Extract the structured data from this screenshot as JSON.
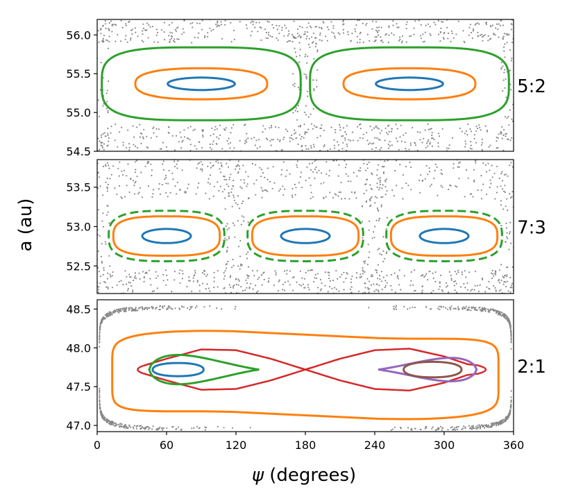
{
  "chart_data": {
    "type": "scatter",
    "xlabel_prefix": "ψ",
    "xlabel_suffix": " (degrees)",
    "ylabel": "a (au)",
    "xlim": [
      0,
      360
    ],
    "x_ticks": [
      "0",
      "60",
      "120",
      "180",
      "240",
      "300",
      "360"
    ],
    "panels": [
      {
        "label": "5:2",
        "ylim": [
          54.5,
          56.2
        ],
        "y_ticks": [
          "54.5",
          "55.0",
          "55.5",
          "56.0"
        ],
        "scatter": {
          "color": "#888888",
          "band_low": [
            54.5,
            54.85
          ],
          "band_high": [
            55.9,
            56.2
          ],
          "fill_near_x": [
            0,
            180,
            360
          ]
        },
        "islands": {
          "centers": [
            90,
            270
          ],
          "y0": 55.37,
          "curves": [
            {
              "color": "#1f77b4",
              "half_width": 29,
              "half_height": 0.08,
              "exponent": 2.0,
              "dashed": false
            },
            {
              "color": "#ff7f0e",
              "half_width": 57,
              "half_height": 0.2,
              "exponent": 2.5,
              "dashed": false
            },
            {
              "color": "#2ca02c",
              "half_width": 86,
              "half_height": 0.47,
              "exponent": 3.5,
              "dashed": false
            }
          ]
        }
      },
      {
        "label": "7:3",
        "ylim": [
          52.15,
          53.85
        ],
        "y_ticks": [
          "52.5",
          "53.0",
          "53.5"
        ],
        "scatter": {
          "color": "#888888",
          "band_low": [
            52.15,
            52.45
          ],
          "band_high": [
            53.35,
            53.85
          ],
          "fill_near_x": [
            0,
            120,
            240,
            360
          ]
        },
        "islands": {
          "centers": [
            60,
            180,
            300
          ],
          "y0": 52.88,
          "curves": [
            {
              "color": "#1f77b4",
              "half_width": 21,
              "half_height": 0.09,
              "exponent": 2.0,
              "dashed": false
            },
            {
              "color": "#ff7f0e",
              "half_width": 46,
              "half_height": 0.25,
              "exponent": 3.0,
              "dashed": false
            },
            {
              "color": "#2ca02c",
              "half_width": 50,
              "half_height": 0.32,
              "exponent": 3.0,
              "dashed": true
            }
          ]
        }
      },
      {
        "label": "2:1",
        "ylim": [
          46.92,
          48.62
        ],
        "y_ticks": [
          "47.0",
          "47.5",
          "48.0",
          "48.5"
        ],
        "separatrix": {
          "color": "#d62728",
          "x": [
            0,
            40,
            60,
            90,
            120,
            150,
            180,
            210,
            240,
            270,
            300,
            320,
            360
          ],
          "y_dev": [
            0,
            -0.05,
            -0.14,
            -0.26,
            -0.25,
            -0.14,
            0,
            0.14,
            0.25,
            0.27,
            0.17,
            0.07,
            0
          ]
        },
        "curves": [
          {
            "color": "#1f77b4",
            "center": [
              70,
              47.72
            ],
            "half_width": 22,
            "half_height": 0.085
          },
          {
            "color": "#2ca02c",
            "center": [
              80,
              47.72
            ],
            "x_range": [
              45,
              140
            ],
            "half_height": 0.2,
            "tear": "right"
          },
          {
            "color": "#9467bd",
            "center": [
              295,
              47.72
            ],
            "x_range": [
              243,
              328
            ],
            "half_height": 0.16,
            "tear": "left"
          },
          {
            "color": "#8c564b",
            "center": [
              290,
              47.72
            ],
            "half_width": 25,
            "half_height": 0.1
          }
        ],
        "outer_orbit": {
          "color": "#ff7f0e",
          "x_range": [
            13,
            347
          ],
          "y_center": 47.65,
          "half_height": 0.52
        },
        "scatter_ring": {
          "color": "#888888",
          "x_range": [
            2,
            358
          ],
          "y_center": 47.74,
          "half_height": 0.78
        }
      }
    ]
  }
}
